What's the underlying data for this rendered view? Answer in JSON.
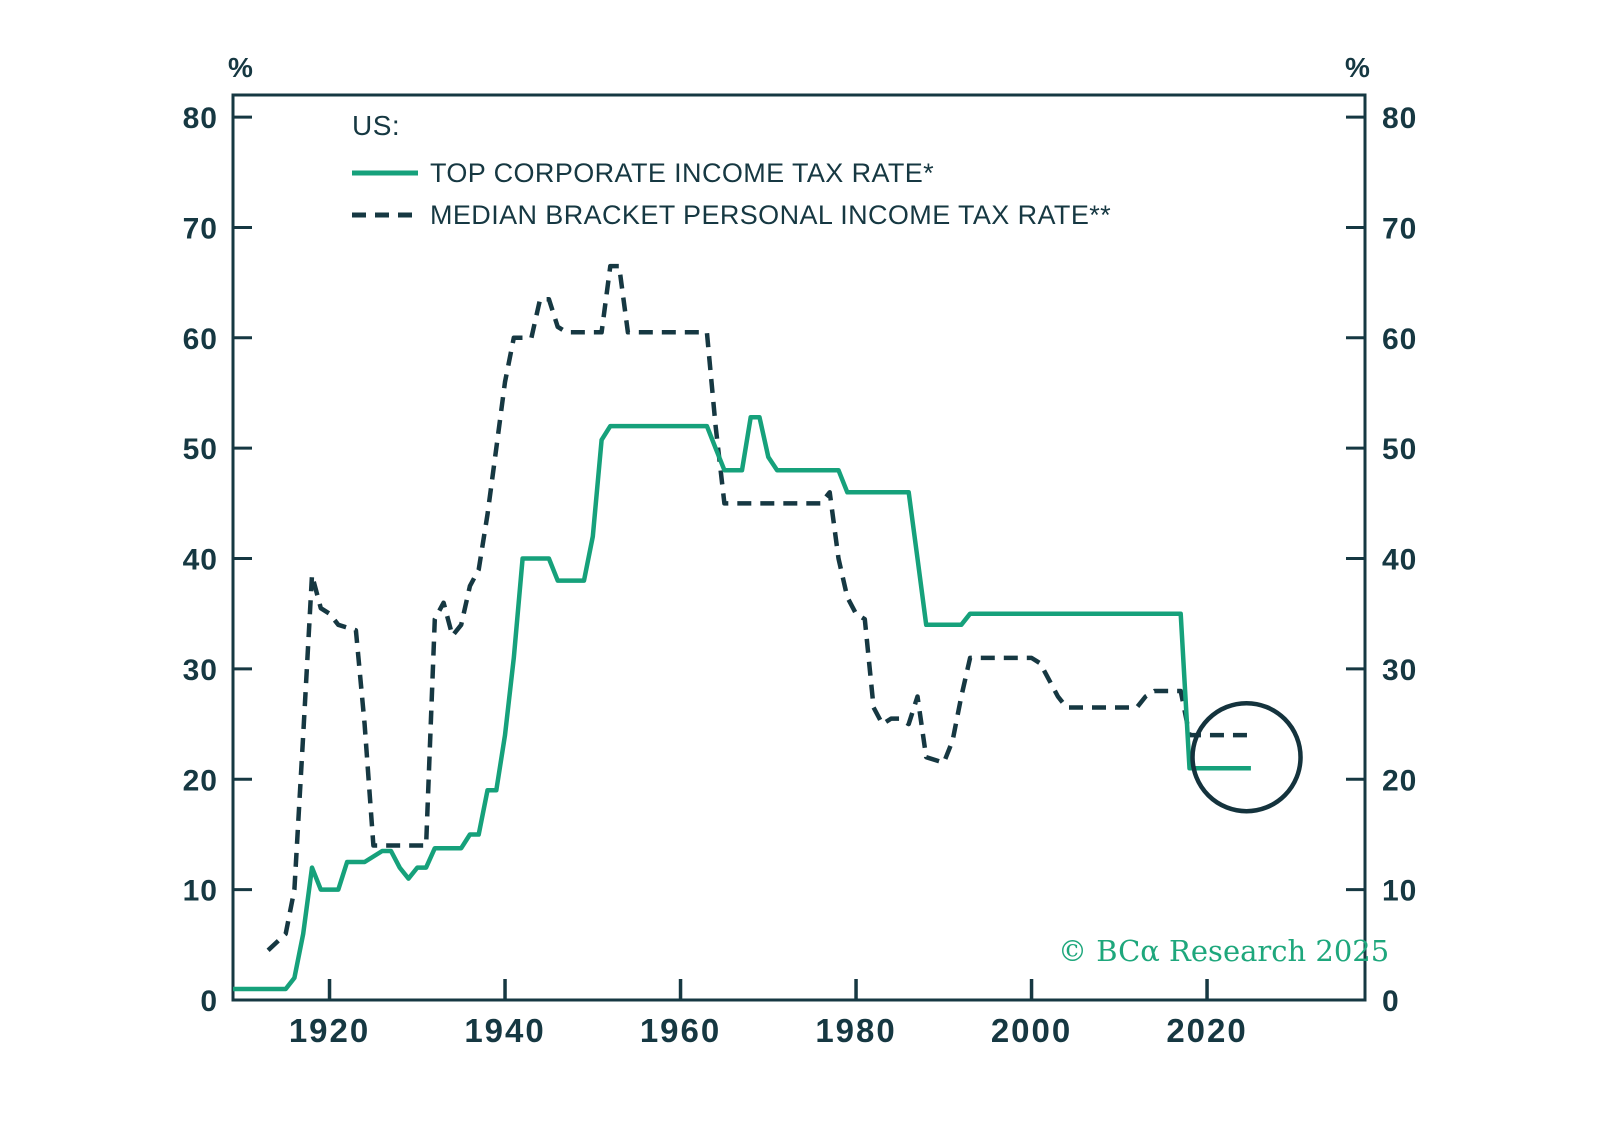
{
  "page": {
    "background": "#ffffff"
  },
  "chart_data": {
    "type": "line",
    "title": "",
    "legend": {
      "title": "US:",
      "position": "top-left-inside"
    },
    "x_axis": {
      "ticks": [
        1920,
        1940,
        1960,
        1980,
        2000,
        2020
      ],
      "range": [
        1909,
        2038
      ],
      "grid": false
    },
    "y_axis": {
      "unit": "%",
      "ticks": [
        0,
        10,
        20,
        30,
        40,
        50,
        60,
        70,
        80
      ],
      "range": [
        0,
        82
      ],
      "mirrored_right": true
    },
    "series": [
      {
        "name": "TOP CORPORATE INCOME TAX RATE*",
        "line_style": "solid",
        "color": "#16a17b",
        "points": [
          [
            1909,
            1
          ],
          [
            1915,
            1
          ],
          [
            1916,
            2
          ],
          [
            1917,
            6
          ],
          [
            1918,
            12
          ],
          [
            1919,
            10
          ],
          [
            1921,
            10
          ],
          [
            1922,
            12.5
          ],
          [
            1924,
            12.5
          ],
          [
            1925,
            13
          ],
          [
            1926,
            13.5
          ],
          [
            1927,
            13.5
          ],
          [
            1928,
            12
          ],
          [
            1929,
            11
          ],
          [
            1930,
            12
          ],
          [
            1931,
            12
          ],
          [
            1932,
            13.75
          ],
          [
            1935,
            13.75
          ],
          [
            1936,
            15
          ],
          [
            1937,
            15
          ],
          [
            1938,
            19
          ],
          [
            1939,
            19
          ],
          [
            1940,
            24
          ],
          [
            1941,
            31
          ],
          [
            1942,
            40
          ],
          [
            1945,
            40
          ],
          [
            1946,
            38
          ],
          [
            1949,
            38
          ],
          [
            1950,
            42
          ],
          [
            1951,
            50.75
          ],
          [
            1952,
            52
          ],
          [
            1963,
            52
          ],
          [
            1964,
            50
          ],
          [
            1965,
            48
          ],
          [
            1967,
            48
          ],
          [
            1968,
            52.8
          ],
          [
            1969,
            52.8
          ],
          [
            1970,
            49.2
          ],
          [
            1971,
            48
          ],
          [
            1978,
            48
          ],
          [
            1979,
            46
          ],
          [
            1986,
            46
          ],
          [
            1987,
            40
          ],
          [
            1988,
            34
          ],
          [
            1992,
            34
          ],
          [
            1993,
            35
          ],
          [
            2017,
            35
          ],
          [
            2018,
            21
          ],
          [
            2025,
            21
          ]
        ]
      },
      {
        "name": "MEDIAN BRACKET PERSONAL INCOME TAX RATE**",
        "line_style": "dashed",
        "color": "#163842",
        "points": [
          [
            1913,
            4.5
          ],
          [
            1915,
            6
          ],
          [
            1916,
            10
          ],
          [
            1917,
            24
          ],
          [
            1918,
            38.5
          ],
          [
            1919,
            35.5
          ],
          [
            1920,
            35
          ],
          [
            1921,
            34
          ],
          [
            1923,
            33.5
          ],
          [
            1924,
            25
          ],
          [
            1925,
            14
          ],
          [
            1931,
            14
          ],
          [
            1932,
            34.5
          ],
          [
            1933,
            36
          ],
          [
            1934,
            33
          ],
          [
            1935,
            34
          ],
          [
            1936,
            37.5
          ],
          [
            1937,
            39
          ],
          [
            1938,
            44
          ],
          [
            1939,
            50
          ],
          [
            1940,
            56
          ],
          [
            1941,
            60
          ],
          [
            1943,
            60
          ],
          [
            1944,
            63.5
          ],
          [
            1945,
            63.5
          ],
          [
            1946,
            61
          ],
          [
            1947,
            60.5
          ],
          [
            1951,
            60.5
          ],
          [
            1952,
            66.5
          ],
          [
            1953,
            66.5
          ],
          [
            1954,
            60.5
          ],
          [
            1963,
            60.5
          ],
          [
            1964,
            52
          ],
          [
            1965,
            45
          ],
          [
            1976,
            45
          ],
          [
            1977,
            46
          ],
          [
            1978,
            40
          ],
          [
            1979,
            36.5
          ],
          [
            1980,
            35
          ],
          [
            1981,
            34.5
          ],
          [
            1982,
            26.5
          ],
          [
            1983,
            25
          ],
          [
            1984,
            25.5
          ],
          [
            1985,
            25.5
          ],
          [
            1986,
            25
          ],
          [
            1987,
            27.5
          ],
          [
            1988,
            22
          ],
          [
            1990,
            21.5
          ],
          [
            1991,
            23.5
          ],
          [
            1992,
            27.5
          ],
          [
            1993,
            31
          ],
          [
            2000,
            31
          ],
          [
            2001,
            30.5
          ],
          [
            2002,
            29
          ],
          [
            2003,
            27.5
          ],
          [
            2004,
            26.5
          ],
          [
            2012,
            26.5
          ],
          [
            2013,
            27.5
          ],
          [
            2014,
            28
          ],
          [
            2017,
            28
          ],
          [
            2018,
            24
          ],
          [
            2025,
            24
          ]
        ]
      }
    ],
    "annotations": [
      {
        "type": "circle",
        "year": 2024.5,
        "value": 22,
        "radius_px": 54,
        "color": "#14333d"
      }
    ],
    "source": "© BCα Research 2025",
    "colors": {
      "axis": "#163842",
      "corporate_line": "#16a17b",
      "personal_line": "#163842",
      "source_text": "#1ea77c"
    }
  }
}
